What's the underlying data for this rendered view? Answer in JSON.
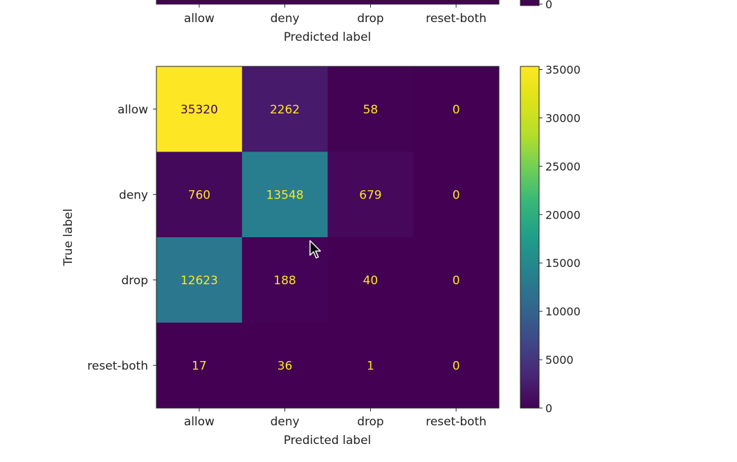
{
  "chart_data": [
    {
      "type": "heatmap",
      "partial": true,
      "visible_content": "bottom edge only",
      "x_tick_labels": [
        "allow",
        "deny",
        "drop",
        "reset-both"
      ],
      "xlabel": "Predicted label",
      "colorbar_visible_ticks": [
        0
      ]
    },
    {
      "type": "heatmap",
      "title": "",
      "xlabel": "Predicted label",
      "ylabel": "True label",
      "x_categories": [
        "allow",
        "deny",
        "drop",
        "reset-both"
      ],
      "y_categories": [
        "allow",
        "deny",
        "drop",
        "reset-both"
      ],
      "values": [
        [
          35320,
          2262,
          58,
          0
        ],
        [
          760,
          13548,
          679,
          0
        ],
        [
          12623,
          188,
          40,
          0
        ],
        [
          17,
          36,
          1,
          0
        ]
      ],
      "colormap": "viridis",
      "colorbar": {
        "range": [
          0,
          35320
        ],
        "ticks": [
          0,
          5000,
          10000,
          15000,
          20000,
          25000,
          30000,
          35000
        ]
      },
      "grid": false
    }
  ],
  "colors": {
    "viridis_low": "#440154",
    "viridis_high": "#fde725",
    "text_on_dark": "#fde725",
    "text_on_light": "#440154"
  }
}
